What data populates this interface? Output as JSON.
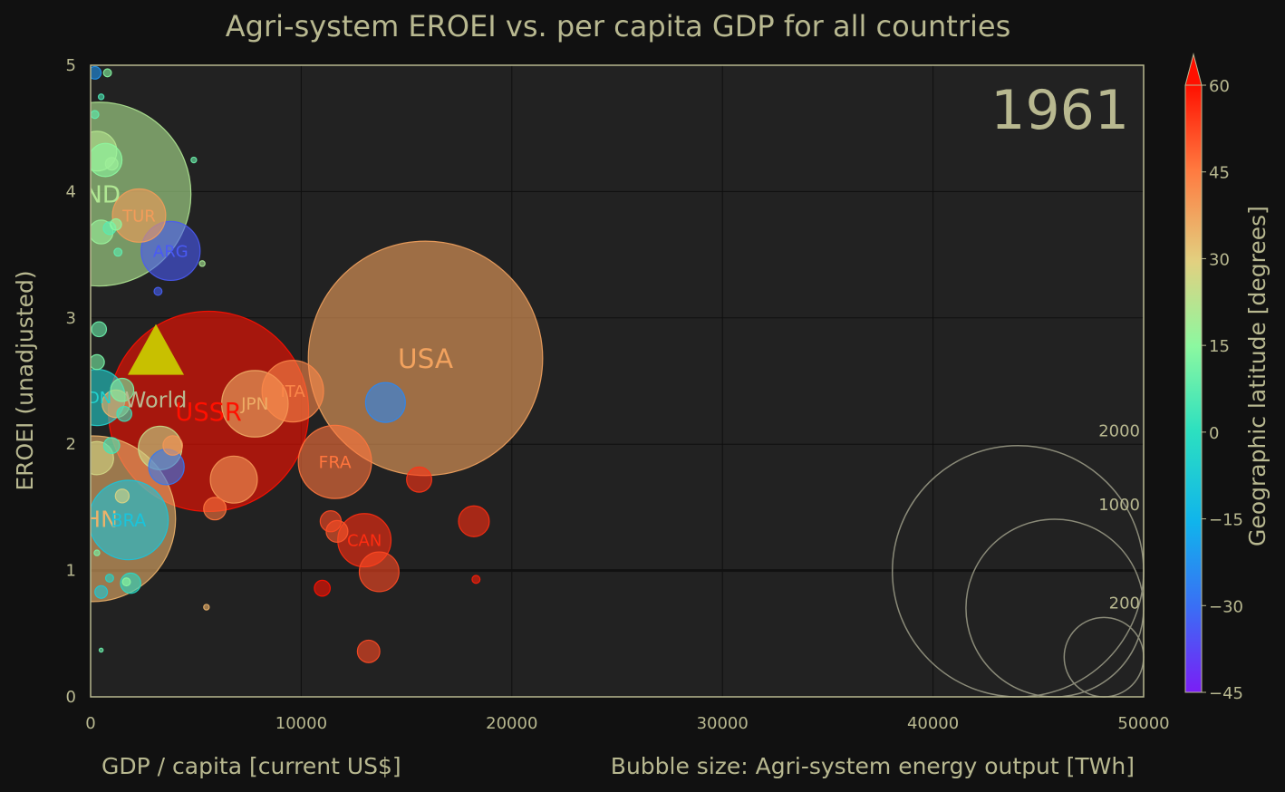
{
  "chart_data": {
    "type": "scatter",
    "title": "Agri-system EROEI vs. per capita GDP for all countries",
    "year_label": "1961",
    "xlabel": "GDP / capita [current US$]",
    "ylabel": "EROEI (unadjusted)",
    "size_label": "Bubble size: Agri-system energy output [TWh]",
    "colorbar_label": "Geographic latitude [degrees]",
    "xlim": [
      0,
      50000
    ],
    "ylim": [
      0,
      5
    ],
    "x_ticks": [
      0,
      10000,
      20000,
      30000,
      40000,
      50000
    ],
    "y_ticks": [
      0,
      1,
      2,
      3,
      4,
      5
    ],
    "colorbar_range": [
      -45,
      60
    ],
    "colorbar_ticks": [
      -45,
      -30,
      -15,
      0,
      15,
      30,
      45,
      60
    ],
    "colorbar_tick_labels": [
      "−45",
      "−30",
      "−15",
      "0",
      "15",
      "30",
      "45",
      "60"
    ],
    "reference_line_y": 1,
    "grid": true,
    "size_legend": [
      {
        "label": "2000",
        "twh": 2000
      },
      {
        "label": "1000",
        "twh": 1000
      },
      {
        "label": "200",
        "twh": 200
      }
    ],
    "world_marker": {
      "label": "World",
      "x": 3100,
      "y": 2.75,
      "color": "#c8c000"
    },
    "labeled_points": [
      {
        "label": "USA",
        "x": 15900,
        "y": 2.68,
        "twh": 1740,
        "lat": 38
      },
      {
        "label": "USSR",
        "x": 5600,
        "y": 2.26,
        "twh": 1270,
        "lat": 60
      },
      {
        "label": "IND",
        "x": 400,
        "y": 3.98,
        "twh": 1070,
        "lat": 21
      },
      {
        "label": "CHN",
        "x": 100,
        "y": 1.41,
        "twh": 870,
        "lat": 35
      },
      {
        "label": "BRA",
        "x": 1800,
        "y": 1.4,
        "twh": 200,
        "lat": -10
      },
      {
        "label": "ITA",
        "x": 9600,
        "y": 2.42,
        "twh": 120,
        "lat": 43
      },
      {
        "label": "FRA",
        "x": 11600,
        "y": 1.86,
        "twh": 170,
        "lat": 46
      },
      {
        "label": "JPN",
        "x": 7800,
        "y": 2.32,
        "twh": 140,
        "lat": 36
      },
      {
        "label": "TUR",
        "x": 2300,
        "y": 3.81,
        "twh": 90,
        "lat": 39
      },
      {
        "label": "ARG",
        "x": 3800,
        "y": 3.53,
        "twh": 110,
        "lat": -34
      },
      {
        "label": "IDN",
        "x": 300,
        "y": 2.37,
        "twh": 100,
        "lat": -5
      },
      {
        "label": "CAN",
        "x": 13000,
        "y": 1.24,
        "twh": 90,
        "lat": 56
      }
    ],
    "points": [
      {
        "x": 200,
        "y": 4.94,
        "twh": 5,
        "lat": -22
      },
      {
        "x": 800,
        "y": 4.94,
        "twh": 2,
        "lat": 14
      },
      {
        "x": 500,
        "y": 4.75,
        "twh": 1,
        "lat": 5
      },
      {
        "x": 200,
        "y": 4.61,
        "twh": 2,
        "lat": 8
      },
      {
        "x": 300,
        "y": 4.32,
        "twh": 50,
        "lat": 22
      },
      {
        "x": 700,
        "y": 4.25,
        "twh": 35,
        "lat": 15
      },
      {
        "x": 1000,
        "y": 4.22,
        "twh": 5,
        "lat": 18
      },
      {
        "x": 4900,
        "y": 4.25,
        "twh": 1,
        "lat": 10
      },
      {
        "x": 1200,
        "y": 3.74,
        "twh": 4,
        "lat": 15
      },
      {
        "x": 900,
        "y": 3.71,
        "twh": 5,
        "lat": 7
      },
      {
        "x": 500,
        "y": 3.68,
        "twh": 18,
        "lat": 17
      },
      {
        "x": 1300,
        "y": 3.52,
        "twh": 2,
        "lat": 8
      },
      {
        "x": 5300,
        "y": 3.43,
        "twh": 1,
        "lat": 20
      },
      {
        "x": 3200,
        "y": 3.21,
        "twh": 2,
        "lat": -33
      },
      {
        "x": 400,
        "y": 2.91,
        "twh": 7,
        "lat": 10
      },
      {
        "x": 300,
        "y": 2.65,
        "twh": 7,
        "lat": 12
      },
      {
        "x": 1500,
        "y": 2.43,
        "twh": 17,
        "lat": 12
      },
      {
        "x": 1200,
        "y": 2.32,
        "twh": 24,
        "lat": 35
      },
      {
        "x": 1600,
        "y": 2.24,
        "twh": 7,
        "lat": 2
      },
      {
        "x": 14000,
        "y": 2.33,
        "twh": 50,
        "lat": -25
      },
      {
        "x": 1000,
        "y": 1.99,
        "twh": 8,
        "lat": 4
      },
      {
        "x": 3300,
        "y": 1.97,
        "twh": 60,
        "lat": 25
      },
      {
        "x": 3900,
        "y": 1.99,
        "twh": 12,
        "lat": 40
      },
      {
        "x": 3600,
        "y": 1.82,
        "twh": 40,
        "lat": -28
      },
      {
        "x": 300,
        "y": 1.89,
        "twh": 35,
        "lat": 27
      },
      {
        "x": 6800,
        "y": 1.72,
        "twh": 70,
        "lat": 40
      },
      {
        "x": 15600,
        "y": 1.72,
        "twh": 20,
        "lat": 55
      },
      {
        "x": 1500,
        "y": 1.59,
        "twh": 6,
        "lat": 28
      },
      {
        "x": 5900,
        "y": 1.49,
        "twh": 16,
        "lat": 46
      },
      {
        "x": 11400,
        "y": 1.39,
        "twh": 14,
        "lat": 52
      },
      {
        "x": 11700,
        "y": 1.31,
        "twh": 15,
        "lat": 50
      },
      {
        "x": 18200,
        "y": 1.39,
        "twh": 30,
        "lat": 56
      },
      {
        "x": 13700,
        "y": 0.99,
        "twh": 50,
        "lat": 52
      },
      {
        "x": 300,
        "y": 1.14,
        "twh": 1,
        "lat": 12
      },
      {
        "x": 900,
        "y": 0.94,
        "twh": 2,
        "lat": -4
      },
      {
        "x": 1900,
        "y": 0.9,
        "twh": 13,
        "lat": -2
      },
      {
        "x": 1700,
        "y": 0.91,
        "twh": 2,
        "lat": 15
      },
      {
        "x": 500,
        "y": 0.83,
        "twh": 5,
        "lat": -8
      },
      {
        "x": 11000,
        "y": 0.86,
        "twh": 8,
        "lat": 60
      },
      {
        "x": 18300,
        "y": 0.93,
        "twh": 2,
        "lat": 58
      },
      {
        "x": 5500,
        "y": 0.71,
        "twh": 1,
        "lat": 35
      },
      {
        "x": 13200,
        "y": 0.36,
        "twh": 16,
        "lat": 52
      },
      {
        "x": 500,
        "y": 0.37,
        "twh": 0.5,
        "lat": 10
      }
    ]
  }
}
